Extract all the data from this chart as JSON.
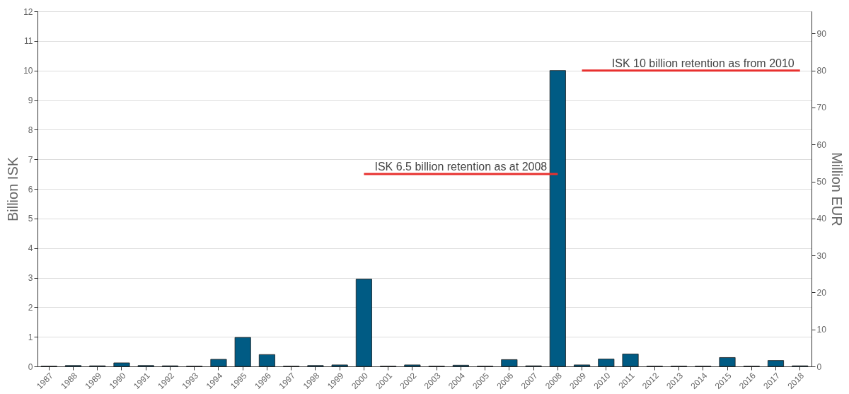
{
  "chart_data": {
    "type": "bar",
    "categories": [
      "1987",
      "1988",
      "1989",
      "1990",
      "1991",
      "1992",
      "1993",
      "1994",
      "1995",
      "1996",
      "1997",
      "1998",
      "1999",
      "2000",
      "2001",
      "2002",
      "2003",
      "2004",
      "2005",
      "2006",
      "2007",
      "2008",
      "2009",
      "2010",
      "2011",
      "2012",
      "2013",
      "2014",
      "2015",
      "2016",
      "2017",
      "2018"
    ],
    "series": [
      {
        "color": "#005b84",
        "values": [
          0.01,
          0.03,
          0.02,
          0.12,
          0.03,
          0.02,
          0.01,
          0.24,
          0.98,
          0.4,
          0.01,
          0.03,
          0.05,
          2.95,
          0.01,
          0.05,
          0.01,
          0.04,
          0.01,
          0.23,
          0.02,
          10.0,
          0.05,
          0.25,
          0.42,
          0.01,
          0.01,
          0.01,
          0.3,
          0.01,
          0.2,
          0.02
        ]
      },
      {
        "type": "line",
        "color": "#e8312f",
        "values": [
          null,
          null,
          null,
          null,
          null,
          null,
          null,
          null,
          null,
          null,
          null,
          null,
          null,
          6.5,
          6.5,
          6.5,
          6.5,
          6.5,
          6.5,
          6.5,
          6.5,
          6.5,
          null,
          null,
          null,
          null,
          null,
          null,
          null,
          null,
          null,
          null
        ]
      },
      {
        "type": "line",
        "color": "#e8312f",
        "values": [
          null,
          null,
          null,
          null,
          null,
          null,
          null,
          null,
          null,
          null,
          null,
          null,
          null,
          null,
          null,
          null,
          null,
          null,
          null,
          null,
          null,
          null,
          10,
          10,
          10,
          10,
          10,
          10,
          10,
          10,
          10,
          10
        ]
      }
    ],
    "ylabel": "Billion ISK",
    "y2label": "Million EUR",
    "ylim": [
      0,
      12
    ],
    "yticks": [
      0,
      1,
      2,
      3,
      4,
      5,
      6,
      7,
      8,
      9,
      10,
      11,
      12
    ],
    "y2lim": [
      0,
      96
    ],
    "y2ticks": [
      0,
      10,
      20,
      30,
      40,
      50,
      60,
      70,
      80,
      90
    ],
    "grid": "y",
    "annotations": [
      {
        "text": "ISK 6.5 billion retention as at 2008",
        "x": "2004",
        "y": 6.5
      },
      {
        "text": "ISK 10 billion retention as from 2010",
        "x": "2014",
        "y": 10
      }
    ]
  }
}
